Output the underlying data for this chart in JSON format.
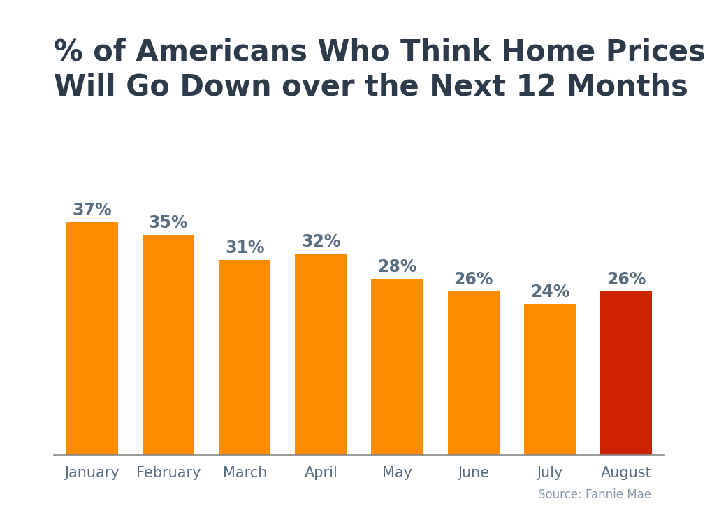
{
  "categories": [
    "January",
    "February",
    "March",
    "April",
    "May",
    "June",
    "July",
    "August"
  ],
  "values": [
    37,
    35,
    31,
    32,
    28,
    26,
    24,
    26
  ],
  "bar_colors": [
    "#FF8C00",
    "#FF8C00",
    "#FF8C00",
    "#FF8C00",
    "#FF8C00",
    "#FF8C00",
    "#FF8C00",
    "#CC2200"
  ],
  "title_line1": "% of Americans Who Think Home Prices",
  "title_line2": "Will Go Down over the Next 12 Months",
  "source_text": "Source: Fannie Mae",
  "label_color": "#5a6e82",
  "title_color": "#2d3a4a",
  "source_color": "#8899aa",
  "background_color": "#ffffff",
  "top_bar_color": "#29abe2",
  "label_fontsize": 17,
  "title_fontsize": 30,
  "tick_fontsize": 15,
  "source_fontsize": 12
}
